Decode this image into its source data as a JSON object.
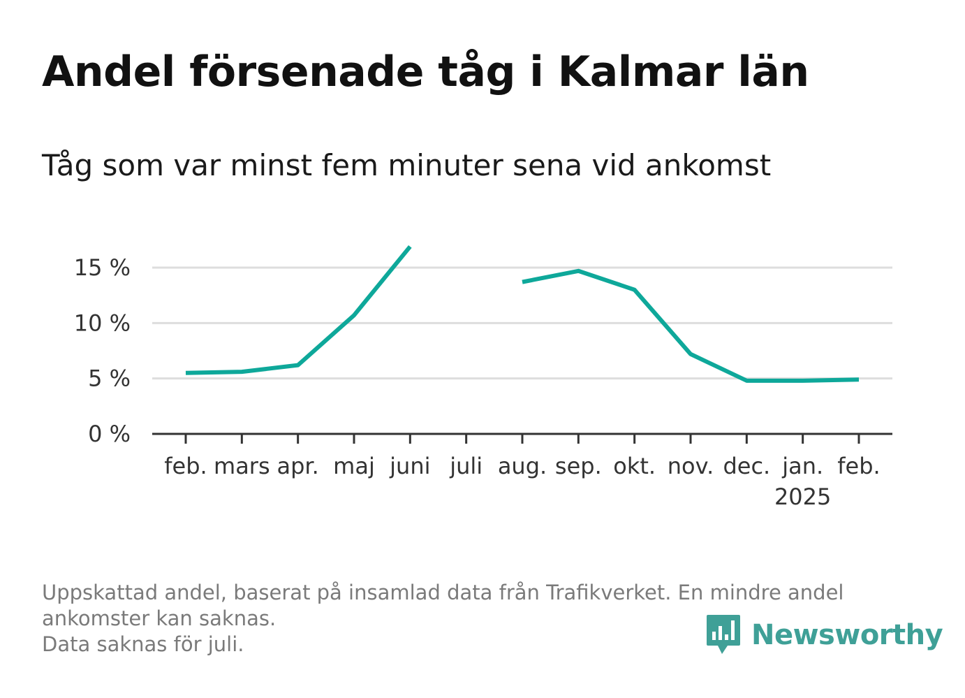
{
  "title": "Andel försenade tåg i Kalmar län",
  "subtitle": "Tåg som var minst fem minuter sena vid ankomst",
  "footnote": {
    "line1": "Uppskattad andel, baserat på insamlad data från Trafikverket. En mindre andel",
    "line2": "ankomster kan saknas.",
    "line3": "Data saknas för juli."
  },
  "logo": {
    "text": "Newsworthy",
    "icon": "newsworthy-chart-bubble-icon"
  },
  "colors": {
    "line": "#0ea89a",
    "grid": "#dddddd",
    "axis": "#333333",
    "logo": "#3fa097"
  },
  "chart_data": {
    "type": "line",
    "title": "Andel försenade tåg i Kalmar län",
    "subtitle": "Tåg som var minst fem minuter sena vid ankomst",
    "categories": [
      "feb.",
      "mars",
      "apr.",
      "maj",
      "juni",
      "juli",
      "aug.",
      "sep.",
      "okt.",
      "nov.",
      "dec.",
      "jan.",
      "feb."
    ],
    "year_marker": {
      "category_index": 11,
      "label": "2025"
    },
    "series": [
      {
        "values": [
          5.5,
          5.6,
          6.2,
          10.7,
          16.9,
          null,
          13.7,
          14.7,
          13.0,
          7.2,
          4.8,
          4.8,
          4.9
        ]
      }
    ],
    "y_ticks": [
      0,
      5,
      10,
      15
    ],
    "y_tick_labels": [
      "0 %",
      "5 %",
      "10 %",
      "15 %"
    ],
    "ylim": [
      0,
      17
    ],
    "grid": true,
    "legend": "none"
  }
}
